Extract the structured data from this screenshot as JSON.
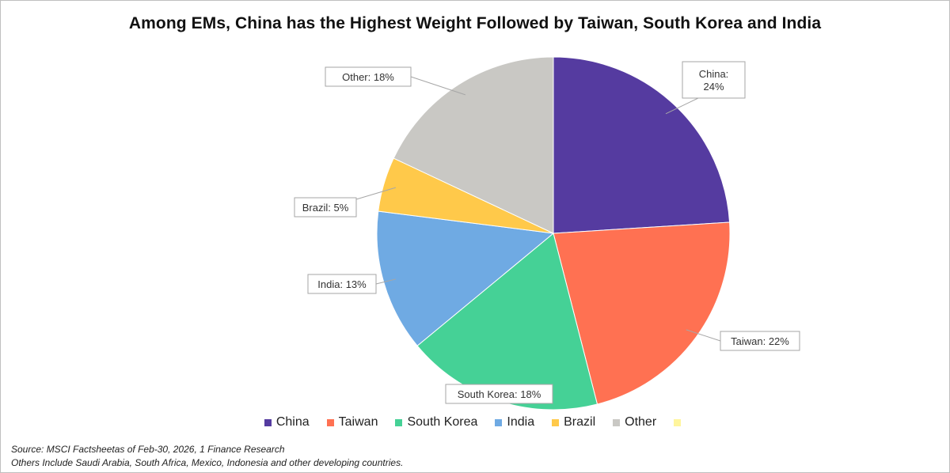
{
  "title": "Among EMs, China has the Highest Weight Followed by Taiwan, South Korea and India",
  "chart_data": {
    "type": "pie",
    "slices": [
      {
        "name": "China",
        "value": 24,
        "label": "China:\n24%",
        "color": "#553BA0"
      },
      {
        "name": "Taiwan",
        "value": 22,
        "label": "Taiwan: 22%",
        "color": "#FF7152"
      },
      {
        "name": "South Korea",
        "value": 18,
        "label": "South Korea: 18%",
        "color": "#45D196"
      },
      {
        "name": "India",
        "value": 13,
        "label": "India: 13%",
        "color": "#6FAAE3"
      },
      {
        "name": "Brazil",
        "value": 5,
        "label": "Brazil: 5%",
        "color": "#FFC94A"
      },
      {
        "name": "Other",
        "value": 18,
        "label": "Other: 18%",
        "color": "#C9C8C4"
      }
    ],
    "legend": [
      {
        "name": "China",
        "color": "#553BA0"
      },
      {
        "name": "Taiwan",
        "color": "#FF7152"
      },
      {
        "name": "South Korea",
        "color": "#45D196"
      },
      {
        "name": "India",
        "color": "#6FAAE3"
      },
      {
        "name": "Brazil",
        "color": "#FFC94A"
      },
      {
        "name": "Other",
        "color": "#C9C8C4"
      },
      {
        "name": "",
        "color": "#FFF59D"
      }
    ],
    "legend_position": "bottom"
  },
  "source_lines": [
    "Source: MSCI Factsheetas of Feb-30, 2026, 1 Finance Research",
    "Others Include Saudi Arabia, South Africa, Mexico, Indonesia and other developing countries."
  ]
}
